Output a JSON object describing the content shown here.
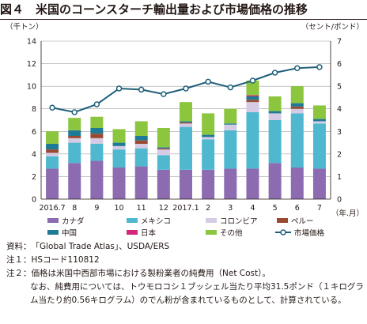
{
  "title": "図４　米国のコーンスターチ輸出量および市場価格の推移",
  "notes": {
    "source_label": "資料：",
    "source_text": "「Global Trade Atlas」、USDA/ERS",
    "note1_label": "注１：",
    "note1_text": "HSコード110812",
    "note2_label": "注２：",
    "note2_text": "価格は米国中西部市場における製粉業者の純費用（Net Cost）。",
    "note2_line2": "なお、純費用については、トウモロコシ１ブッシェル当たり平均31.5ポンド（１キログラム当たり約0.56キログラム）のでん粉が含まれているものとして、計算されている。"
  },
  "chart_data": {
    "type": "bar",
    "stacked": true,
    "categories": [
      "2016.7",
      "8",
      "9",
      "10",
      "11",
      "12",
      "2017.1",
      "2",
      "3",
      "4",
      "5",
      "6",
      "7"
    ],
    "x_unit_label": "（年.月）",
    "y_left": {
      "label": "（千トン）",
      "ylim": [
        0,
        14
      ],
      "ticks": [
        0,
        2,
        4,
        6,
        8,
        10,
        12,
        14
      ]
    },
    "y_right": {
      "label": "（セント/ポンド）",
      "ylim": [
        0,
        7
      ],
      "ticks": [
        0,
        1,
        2,
        3,
        4,
        5,
        6,
        7
      ]
    },
    "grid": true,
    "legend_position": "bottom",
    "series": [
      {
        "name": "カナダ",
        "color": "#8c6bb1",
        "values": [
          2.7,
          3.2,
          3.4,
          2.8,
          2.9,
          2.6,
          2.6,
          2.6,
          2.7,
          2.7,
          3.2,
          2.8,
          2.7
        ]
      },
      {
        "name": "メキシコ",
        "color": "#4fb8cf",
        "values": [
          1.1,
          1.8,
          1.5,
          1.6,
          1.6,
          1.3,
          3.8,
          2.7,
          3.4,
          5.0,
          3.8,
          4.8,
          4.0
        ]
      },
      {
        "name": "コロンビア",
        "color": "#d6cbe4",
        "values": [
          0.3,
          0.4,
          0.5,
          0.3,
          0.4,
          0.5,
          0.3,
          0.2,
          0.5,
          0.9,
          0.6,
          0.4,
          0.2
        ]
      },
      {
        "name": "ペルー",
        "color": "#9b4a32",
        "values": [
          0.3,
          0.2,
          0.4,
          0.0,
          0.3,
          0.1,
          0.1,
          0.0,
          0.0,
          0.2,
          0.0,
          0.2,
          0.0
        ]
      },
      {
        "name": "中国",
        "color": "#1f7a96",
        "values": [
          0.5,
          0.5,
          0.5,
          0.3,
          0.4,
          0.1,
          0.1,
          0.2,
          0.1,
          0.3,
          0.2,
          0.3,
          0.2
        ]
      },
      {
        "name": "日本",
        "color": "#d4267a",
        "values": [
          0.0,
          0.0,
          0.0,
          0.0,
          0.0,
          0.0,
          0.0,
          0.0,
          0.0,
          0.1,
          0.0,
          0.0,
          0.0
        ]
      },
      {
        "name": "その他",
        "color": "#8cc63f",
        "values": [
          1.1,
          1.1,
          1.0,
          1.2,
          1.3,
          1.7,
          1.7,
          1.9,
          1.3,
          1.3,
          1.3,
          1.5,
          1.2
        ]
      }
    ],
    "line_series": {
      "name": "市場価格",
      "color": "#1f5f7a",
      "axis": "right",
      "values": [
        4.05,
        3.85,
        4.2,
        4.9,
        4.85,
        4.65,
        4.9,
        5.2,
        4.95,
        5.25,
        5.6,
        5.8,
        5.85
      ]
    }
  }
}
